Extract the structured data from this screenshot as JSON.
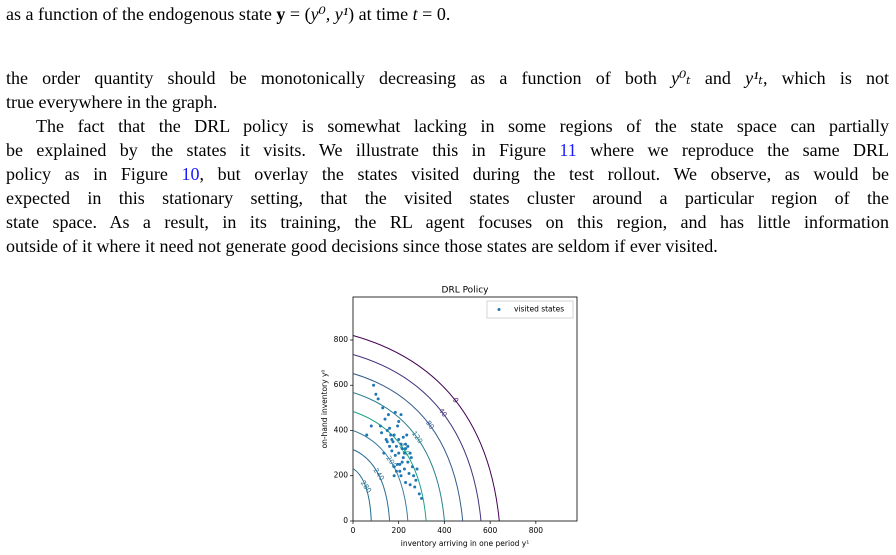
{
  "top_line": {
    "parts": [
      {
        "text": "as a function of the endogenous state "
      },
      {
        "text": "y",
        "bold": true
      },
      {
        "text": " = ("
      },
      {
        "text": "y⁰, y¹",
        "math": true
      },
      {
        "text": ") at time "
      },
      {
        "text": "t",
        "math": true
      },
      {
        "text": " = 0."
      }
    ]
  },
  "paragraphs": [
    {
      "lines": [
        {
          "parts": [
            {
              "text": "the order quantity should be monotonically decreasing as a function of both "
            },
            {
              "text": "y⁰ₜ",
              "math": true
            },
            {
              "text": " and "
            },
            {
              "text": "y¹ₜ",
              "math": true
            },
            {
              "text": ", which is not"
            }
          ]
        },
        {
          "parts": [
            {
              "text": "true everywhere in the graph."
            }
          ]
        }
      ]
    },
    {
      "lines": [
        {
          "parts": [
            {
              "text": "The fact that the DRL policy is somewhat lacking in some regions of the state space can partially"
            }
          ]
        },
        {
          "parts": [
            {
              "text": "be explained by the states it visits. We illustrate this in Figure "
            },
            {
              "text": "11",
              "link": true
            },
            {
              "text": " where we reproduce the same DRL"
            }
          ]
        },
        {
          "parts": [
            {
              "text": "policy as in Figure "
            },
            {
              "text": "10",
              "link": true
            },
            {
              "text": ", but overlay the states visited during the test rollout. We observe, as would be"
            }
          ]
        },
        {
          "parts": [
            {
              "text": "expected in this stationary setting, that the visited states cluster around a particular region of the"
            }
          ]
        },
        {
          "parts": [
            {
              "text": "state space. As a result, in its training, the RL agent focuses on this region, and has little information"
            }
          ]
        },
        {
          "parts": [
            {
              "text": "outside of it where it need not generate good decisions since those states are seldom if ever visited."
            }
          ]
        }
      ]
    }
  ],
  "chart_data": {
    "type": "scatter",
    "title": "DRL Policy",
    "x_label": "inventory arriving in one period y¹",
    "y_label": "on-hand inventory y⁰",
    "xlim": [
      0,
      980
    ],
    "ylim": [
      0,
      990
    ],
    "xticks": [
      0,
      200,
      400,
      600,
      800
    ],
    "yticks": [
      0,
      200,
      400,
      600,
      800
    ],
    "legend": "upper right",
    "contour_levels": [
      0,
      40,
      80,
      120,
      160,
      200,
      240,
      280
    ],
    "contour_colors": [
      "#440154",
      "#46327e",
      "#365c8d",
      "#277f8e",
      "#1fa187",
      "#3a7fa0",
      "#2a6f95",
      "#1f6b8a"
    ],
    "series": [
      {
        "name": "visited states",
        "color": "#1f77b4",
        "x": [
          120,
          150,
          180,
          200,
          210,
          230,
          250,
          170,
          190,
          140,
          160,
          220,
          240,
          260,
          280,
          130,
          110,
          200,
          215,
          185,
          175,
          165,
          205,
          225,
          245,
          195,
          155,
          145,
          235,
          255,
          100,
          90,
          265,
          275,
          210,
          190,
          180,
          170,
          160,
          150,
          230,
          220,
          240,
          200,
          185,
          195,
          205,
          215,
          225,
          135,
          125,
          250,
          270,
          290,
          300,
          80,
          60,
          210,
          230,
          180
        ],
        "values": [
          420,
          400,
          380,
          360,
          340,
          320,
          300,
          360,
          330,
          450,
          410,
          280,
          260,
          240,
          230,
          500,
          540,
          300,
          260,
          290,
          350,
          380,
          250,
          230,
          210,
          420,
          470,
          360,
          380,
          280,
          560,
          600,
          200,
          180,
          200,
          220,
          240,
          310,
          330,
          350,
          340,
          370,
          330,
          440,
          480,
          250,
          220,
          320,
          300,
          300,
          390,
          160,
          150,
          120,
          100,
          420,
          380,
          470,
          170,
          200
        ]
      }
    ]
  }
}
